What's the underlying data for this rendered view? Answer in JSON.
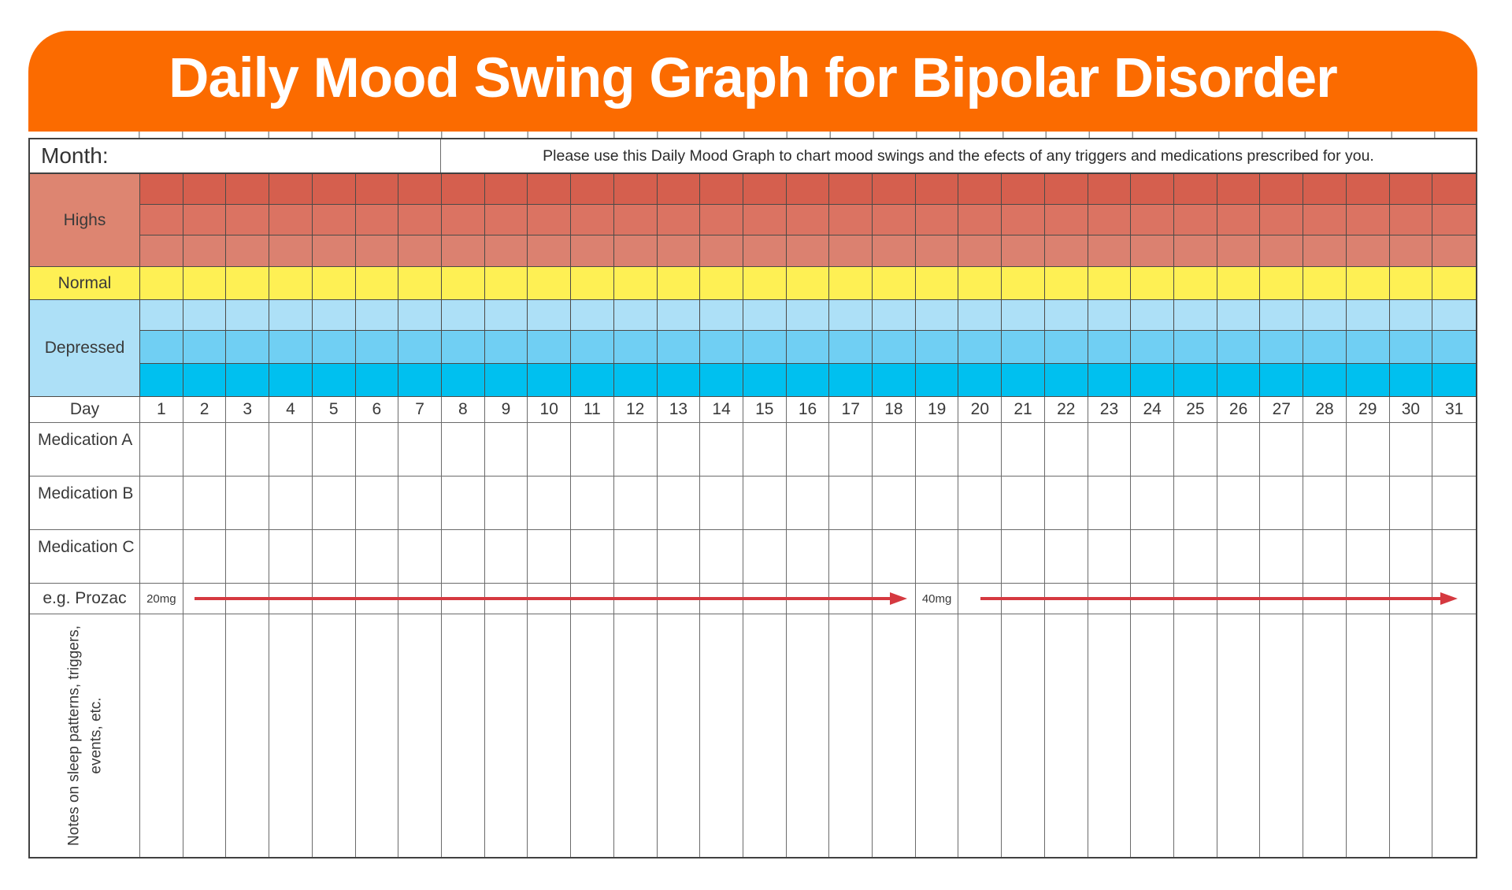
{
  "header": {
    "title": "Daily Mood Swing Graph for Bipolar Disorder",
    "banner_color": "#fb6b00"
  },
  "table": {
    "month_label": "Month:",
    "instruction": "Please use this Daily Mood Graph to chart mood swings and the efects of any triggers and medications prescribed for you.",
    "mood_bands": [
      {
        "label": "Highs",
        "label_color": "#dd8571",
        "row_colors": [
          "#d55f4e",
          "#db7362",
          "#db8170"
        ]
      },
      {
        "label": "Normal",
        "label_color": "#fef054",
        "row_colors": [
          "#fef054"
        ]
      },
      {
        "label": "Depressed",
        "label_color": "#ade0f7",
        "row_colors": [
          "#ade0f7",
          "#70cff3",
          "#00c0ef"
        ]
      }
    ],
    "day_header": {
      "label": "Day",
      "days": [
        1,
        2,
        3,
        4,
        5,
        6,
        7,
        8,
        9,
        10,
        11,
        12,
        13,
        14,
        15,
        16,
        17,
        18,
        19,
        20,
        21,
        22,
        23,
        24,
        25,
        26,
        27,
        28,
        29,
        30,
        31
      ]
    },
    "medication_rows": [
      {
        "label": "Medication A"
      },
      {
        "label": "Medication B"
      },
      {
        "label": "Medication C"
      }
    ],
    "example_row": {
      "label": "e.g. Prozac",
      "arrow_color": "#d53940",
      "dose1": {
        "text": "20mg",
        "day": 1
      },
      "arrow1": {
        "from_day": 2,
        "to_day": 18
      },
      "dose2": {
        "text": "40mg",
        "day": 19
      },
      "arrow2": {
        "from_day": 20,
        "to_day": 31
      }
    },
    "notes_row": {
      "line1": "Notes on sleep patterns, triggers,",
      "line2": "events, etc."
    }
  }
}
